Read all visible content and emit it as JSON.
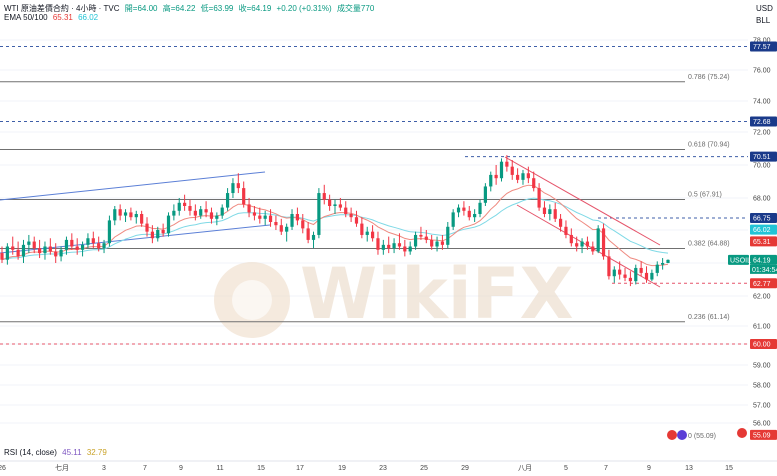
{
  "header": {
    "symbol_line": "WTI 原油差價合約 · 4小時 · TVC",
    "open": "開=64.00",
    "high": "高=64.22",
    "low": "低=63.99",
    "close": "收=64.19",
    "change": "+0.20 (+0.31%)",
    "volume": "成交量770",
    "ema_label": "EMA 50/100",
    "ema_fast_val": "65.31",
    "ema_slow_val": "66.02",
    "currency": "USD",
    "unit": "BLL"
  },
  "rsi": {
    "label": "RSI (14, close)",
    "val1": "45.11",
    "val2": "32.79"
  },
  "watermark": "WikiFX",
  "colors": {
    "up": "#089981",
    "down": "#f23645",
    "ema_fast": "#ef8a80",
    "ema_slow": "#7fd9e6",
    "channel": "#5b7fd6",
    "down_channel": "#e5546a",
    "fib": "#707070",
    "dash_blue": "#3f5fa8",
    "dash_red": "#e5546a"
  },
  "chart_data": {
    "type": "candlestick",
    "ylim": [
      54.6,
      79.2
    ],
    "y_ticks": [
      "78.00",
      "76.00",
      "74.00",
      "72.00",
      "70.00",
      "68.00",
      "66.00",
      "64.00",
      "62.00",
      "61.00",
      "60.00",
      "59.00",
      "58.00",
      "57.00",
      "56.00"
    ],
    "x_ticks": [
      "26",
      "七月",
      "3",
      "7",
      "9",
      "11",
      "15",
      "17",
      "19",
      "23",
      "25",
      "29",
      "八月",
      "5",
      "7",
      "9",
      "13",
      "15"
    ],
    "fib_levels": [
      {
        "ratio": "0.786",
        "price": 75.24,
        "label": "0.786 (75.24)"
      },
      {
        "ratio": "0.618",
        "price": 70.94,
        "label": "0.618 (70.94)"
      },
      {
        "ratio": "0.5",
        "price": 67.91,
        "label": "0.5 (67.91)"
      },
      {
        "ratio": "0.382",
        "price": 64.88,
        "label": "0.382 (64.88)"
      },
      {
        "ratio": "0.236",
        "price": 61.14,
        "label": "0.236 (61.14)"
      },
      {
        "ratio": "0",
        "price": 55.09,
        "label": "0 (55.09)"
      }
    ],
    "horizontal_levels": [
      {
        "price": 77.57,
        "label": "77.57",
        "style": "blue"
      },
      {
        "price": 72.68,
        "label": "72.68",
        "style": "blue"
      },
      {
        "price": 70.51,
        "label": "70.51",
        "style": "blue"
      },
      {
        "price": 66.75,
        "label": "66.75",
        "style": "blue"
      },
      {
        "price": 62.77,
        "label": "62.77",
        "style": "red"
      },
      {
        "price": 60.0,
        "label": "60.00",
        "style": "red"
      }
    ],
    "price_tags": [
      {
        "price": 66.02,
        "label": "66.02",
        "color": "#22c4d6"
      },
      {
        "price": 65.31,
        "label": "65.31",
        "color": "#e53935"
      },
      {
        "price": 64.19,
        "label": "64.19",
        "color": "#089981"
      },
      {
        "price": 55.09,
        "label": "55.09",
        "color": "#e53935"
      }
    ],
    "last_price_countdown": "01:34:54",
    "symbol_tag": "USOIL",
    "candles": [
      {
        "o": 64.6,
        "h": 65.0,
        "l": 64.0,
        "c": 64.2
      },
      {
        "o": 64.2,
        "h": 65.2,
        "l": 63.9,
        "c": 65.0
      },
      {
        "o": 65.0,
        "h": 65.6,
        "l": 64.5,
        "c": 64.8
      },
      {
        "o": 64.8,
        "h": 65.3,
        "l": 64.2,
        "c": 64.4
      },
      {
        "o": 64.4,
        "h": 65.4,
        "l": 64.0,
        "c": 65.1
      },
      {
        "o": 65.1,
        "h": 65.7,
        "l": 64.6,
        "c": 65.3
      },
      {
        "o": 65.3,
        "h": 65.6,
        "l": 64.6,
        "c": 64.9
      },
      {
        "o": 64.9,
        "h": 65.4,
        "l": 64.3,
        "c": 64.6
      },
      {
        "o": 64.6,
        "h": 65.3,
        "l": 64.2,
        "c": 65.0
      },
      {
        "o": 65.0,
        "h": 65.5,
        "l": 64.5,
        "c": 64.7
      },
      {
        "o": 64.7,
        "h": 65.2,
        "l": 64.0,
        "c": 64.4
      },
      {
        "o": 64.4,
        "h": 65.0,
        "l": 64.1,
        "c": 64.8
      },
      {
        "o": 64.8,
        "h": 65.6,
        "l": 64.5,
        "c": 65.4
      },
      {
        "o": 65.4,
        "h": 65.8,
        "l": 64.8,
        "c": 65.0
      },
      {
        "o": 65.0,
        "h": 65.5,
        "l": 64.5,
        "c": 64.8
      },
      {
        "o": 64.8,
        "h": 65.3,
        "l": 64.4,
        "c": 65.1
      },
      {
        "o": 65.1,
        "h": 65.8,
        "l": 64.9,
        "c": 65.5
      },
      {
        "o": 65.5,
        "h": 65.9,
        "l": 64.9,
        "c": 65.2
      },
      {
        "o": 65.2,
        "h": 65.6,
        "l": 64.7,
        "c": 64.9
      },
      {
        "o": 64.9,
        "h": 65.4,
        "l": 64.6,
        "c": 65.2
      },
      {
        "o": 65.2,
        "h": 66.9,
        "l": 65.0,
        "c": 66.6
      },
      {
        "o": 66.6,
        "h": 67.5,
        "l": 66.3,
        "c": 67.3
      },
      {
        "o": 67.3,
        "h": 67.6,
        "l": 66.6,
        "c": 66.9
      },
      {
        "o": 66.9,
        "h": 67.3,
        "l": 66.5,
        "c": 67.1
      },
      {
        "o": 67.1,
        "h": 67.4,
        "l": 66.6,
        "c": 66.8
      },
      {
        "o": 66.8,
        "h": 67.2,
        "l": 66.4,
        "c": 67.0
      },
      {
        "o": 67.0,
        "h": 67.2,
        "l": 66.2,
        "c": 66.4
      },
      {
        "o": 66.4,
        "h": 66.8,
        "l": 65.6,
        "c": 65.9
      },
      {
        "o": 65.9,
        "h": 66.3,
        "l": 65.2,
        "c": 65.5
      },
      {
        "o": 65.5,
        "h": 66.2,
        "l": 65.3,
        "c": 66.0
      },
      {
        "o": 66.0,
        "h": 66.4,
        "l": 65.6,
        "c": 65.8
      },
      {
        "o": 65.8,
        "h": 67.1,
        "l": 65.6,
        "c": 66.9
      },
      {
        "o": 66.9,
        "h": 67.6,
        "l": 66.6,
        "c": 67.2
      },
      {
        "o": 67.2,
        "h": 68.0,
        "l": 66.9,
        "c": 67.7
      },
      {
        "o": 67.7,
        "h": 68.2,
        "l": 67.2,
        "c": 67.5
      },
      {
        "o": 67.5,
        "h": 67.9,
        "l": 66.9,
        "c": 67.2
      },
      {
        "o": 67.2,
        "h": 67.6,
        "l": 66.6,
        "c": 66.9
      },
      {
        "o": 66.9,
        "h": 67.5,
        "l": 66.7,
        "c": 67.3
      },
      {
        "o": 67.3,
        "h": 67.8,
        "l": 66.8,
        "c": 67.1
      },
      {
        "o": 67.1,
        "h": 67.4,
        "l": 66.4,
        "c": 66.7
      },
      {
        "o": 66.7,
        "h": 67.1,
        "l": 66.3,
        "c": 66.9
      },
      {
        "o": 66.9,
        "h": 67.6,
        "l": 66.7,
        "c": 67.4
      },
      {
        "o": 67.4,
        "h": 68.6,
        "l": 67.2,
        "c": 68.3
      },
      {
        "o": 68.3,
        "h": 69.2,
        "l": 68.0,
        "c": 68.9
      },
      {
        "o": 68.9,
        "h": 69.5,
        "l": 68.3,
        "c": 68.6
      },
      {
        "o": 68.6,
        "h": 69.0,
        "l": 67.4,
        "c": 67.6
      },
      {
        "o": 67.6,
        "h": 68.0,
        "l": 66.8,
        "c": 67.1
      },
      {
        "o": 67.1,
        "h": 67.5,
        "l": 66.6,
        "c": 66.9
      },
      {
        "o": 66.9,
        "h": 67.4,
        "l": 66.4,
        "c": 66.7
      },
      {
        "o": 66.7,
        "h": 67.2,
        "l": 66.3,
        "c": 66.9
      },
      {
        "o": 66.9,
        "h": 67.3,
        "l": 66.2,
        "c": 66.5
      },
      {
        "o": 66.5,
        "h": 66.9,
        "l": 66.0,
        "c": 66.3
      },
      {
        "o": 66.3,
        "h": 66.7,
        "l": 65.7,
        "c": 65.9
      },
      {
        "o": 65.9,
        "h": 66.4,
        "l": 65.3,
        "c": 66.2
      },
      {
        "o": 66.2,
        "h": 67.3,
        "l": 66.0,
        "c": 67.0
      },
      {
        "o": 67.0,
        "h": 67.4,
        "l": 66.3,
        "c": 66.6
      },
      {
        "o": 66.6,
        "h": 67.0,
        "l": 65.8,
        "c": 66.1
      },
      {
        "o": 66.1,
        "h": 66.5,
        "l": 65.2,
        "c": 65.4
      },
      {
        "o": 65.4,
        "h": 65.9,
        "l": 64.9,
        "c": 65.7
      },
      {
        "o": 65.7,
        "h": 68.6,
        "l": 65.5,
        "c": 68.3
      },
      {
        "o": 68.3,
        "h": 68.8,
        "l": 67.6,
        "c": 67.9
      },
      {
        "o": 67.9,
        "h": 68.2,
        "l": 67.2,
        "c": 67.5
      },
      {
        "o": 67.5,
        "h": 67.9,
        "l": 67.0,
        "c": 67.6
      },
      {
        "o": 67.6,
        "h": 68.0,
        "l": 67.2,
        "c": 67.4
      },
      {
        "o": 67.4,
        "h": 67.8,
        "l": 66.8,
        "c": 67.0
      },
      {
        "o": 67.0,
        "h": 67.4,
        "l": 66.5,
        "c": 66.8
      },
      {
        "o": 66.8,
        "h": 67.2,
        "l": 66.2,
        "c": 66.4
      },
      {
        "o": 66.4,
        "h": 66.8,
        "l": 65.5,
        "c": 65.7
      },
      {
        "o": 65.7,
        "h": 66.2,
        "l": 65.3,
        "c": 65.9
      },
      {
        "o": 65.9,
        "h": 66.3,
        "l": 65.3,
        "c": 65.5
      },
      {
        "o": 65.5,
        "h": 65.9,
        "l": 64.5,
        "c": 64.8
      },
      {
        "o": 64.8,
        "h": 65.4,
        "l": 64.5,
        "c": 65.1
      },
      {
        "o": 65.1,
        "h": 65.6,
        "l": 64.6,
        "c": 64.9
      },
      {
        "o": 64.9,
        "h": 65.5,
        "l": 64.6,
        "c": 65.2
      },
      {
        "o": 65.2,
        "h": 65.8,
        "l": 64.8,
        "c": 65.0
      },
      {
        "o": 65.0,
        "h": 65.4,
        "l": 64.4,
        "c": 64.7
      },
      {
        "o": 64.7,
        "h": 65.3,
        "l": 64.5,
        "c": 65.0
      },
      {
        "o": 65.0,
        "h": 65.9,
        "l": 64.8,
        "c": 65.7
      },
      {
        "o": 65.7,
        "h": 66.2,
        "l": 65.4,
        "c": 65.6
      },
      {
        "o": 65.6,
        "h": 66.0,
        "l": 65.2,
        "c": 65.4
      },
      {
        "o": 65.4,
        "h": 65.7,
        "l": 64.8,
        "c": 65.0
      },
      {
        "o": 65.0,
        "h": 65.6,
        "l": 64.7,
        "c": 65.3
      },
      {
        "o": 65.3,
        "h": 65.7,
        "l": 64.8,
        "c": 65.1
      },
      {
        "o": 65.1,
        "h": 66.5,
        "l": 64.9,
        "c": 66.2
      },
      {
        "o": 66.2,
        "h": 67.3,
        "l": 66.0,
        "c": 67.1
      },
      {
        "o": 67.1,
        "h": 67.6,
        "l": 66.8,
        "c": 67.4
      },
      {
        "o": 67.4,
        "h": 67.8,
        "l": 66.9,
        "c": 67.2
      },
      {
        "o": 67.2,
        "h": 67.5,
        "l": 66.6,
        "c": 66.8
      },
      {
        "o": 66.8,
        "h": 67.3,
        "l": 66.5,
        "c": 67.0
      },
      {
        "o": 67.0,
        "h": 67.9,
        "l": 66.8,
        "c": 67.7
      },
      {
        "o": 67.7,
        "h": 68.9,
        "l": 67.5,
        "c": 68.7
      },
      {
        "o": 68.7,
        "h": 69.6,
        "l": 68.4,
        "c": 69.4
      },
      {
        "o": 69.4,
        "h": 70.0,
        "l": 68.8,
        "c": 69.2
      },
      {
        "o": 69.2,
        "h": 70.4,
        "l": 69.0,
        "c": 70.2
      },
      {
        "o": 70.2,
        "h": 70.6,
        "l": 69.6,
        "c": 69.9
      },
      {
        "o": 69.9,
        "h": 70.3,
        "l": 69.1,
        "c": 69.4
      },
      {
        "o": 69.4,
        "h": 69.8,
        "l": 68.9,
        "c": 69.1
      },
      {
        "o": 69.1,
        "h": 69.7,
        "l": 68.8,
        "c": 69.5
      },
      {
        "o": 69.5,
        "h": 69.9,
        "l": 68.9,
        "c": 69.2
      },
      {
        "o": 69.2,
        "h": 69.6,
        "l": 68.4,
        "c": 68.6
      },
      {
        "o": 68.6,
        "h": 68.9,
        "l": 67.2,
        "c": 67.4
      },
      {
        "o": 67.4,
        "h": 67.8,
        "l": 66.8,
        "c": 67.0
      },
      {
        "o": 67.0,
        "h": 67.6,
        "l": 66.6,
        "c": 67.3
      },
      {
        "o": 67.3,
        "h": 67.7,
        "l": 66.5,
        "c": 66.7
      },
      {
        "o": 66.7,
        "h": 67.0,
        "l": 65.9,
        "c": 66.2
      },
      {
        "o": 66.2,
        "h": 66.6,
        "l": 65.5,
        "c": 65.7
      },
      {
        "o": 65.7,
        "h": 66.1,
        "l": 65.0,
        "c": 65.2
      },
      {
        "o": 65.2,
        "h": 65.6,
        "l": 64.7,
        "c": 65.0
      },
      {
        "o": 65.0,
        "h": 65.5,
        "l": 64.6,
        "c": 65.3
      },
      {
        "o": 65.3,
        "h": 65.6,
        "l": 64.8,
        "c": 65.0
      },
      {
        "o": 65.0,
        "h": 65.3,
        "l": 64.5,
        "c": 64.7
      },
      {
        "o": 64.7,
        "h": 66.3,
        "l": 64.6,
        "c": 66.1
      },
      {
        "o": 66.1,
        "h": 66.4,
        "l": 64.2,
        "c": 64.4
      },
      {
        "o": 64.4,
        "h": 64.8,
        "l": 63.0,
        "c": 63.2
      },
      {
        "o": 63.2,
        "h": 63.8,
        "l": 62.8,
        "c": 63.6
      },
      {
        "o": 63.6,
        "h": 64.1,
        "l": 63.0,
        "c": 63.3
      },
      {
        "o": 63.3,
        "h": 63.7,
        "l": 62.9,
        "c": 63.1
      },
      {
        "o": 63.1,
        "h": 63.5,
        "l": 62.6,
        "c": 62.9
      },
      {
        "o": 62.9,
        "h": 63.9,
        "l": 62.7,
        "c": 63.7
      },
      {
        "o": 63.7,
        "h": 64.1,
        "l": 63.2,
        "c": 63.4
      },
      {
        "o": 63.4,
        "h": 63.8,
        "l": 62.8,
        "c": 63.0
      },
      {
        "o": 63.0,
        "h": 63.6,
        "l": 62.9,
        "c": 63.4
      },
      {
        "o": 63.4,
        "h": 64.1,
        "l": 63.2,
        "c": 63.9
      },
      {
        "o": 63.9,
        "h": 64.3,
        "l": 63.6,
        "c": 64.0
      },
      {
        "o": 64.0,
        "h": 64.22,
        "l": 63.99,
        "c": 64.19
      }
    ]
  }
}
